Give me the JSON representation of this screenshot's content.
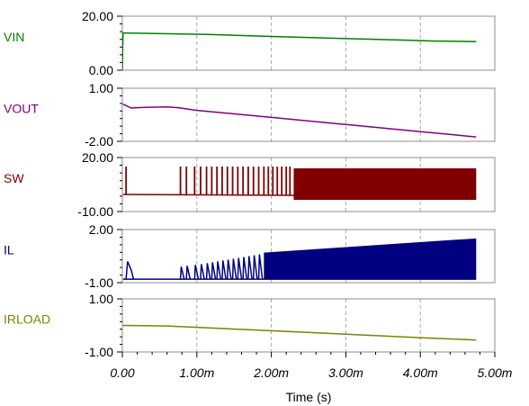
{
  "chart_data": {
    "type": "line",
    "xlabel": "Time (s)",
    "x_ticks": [
      "0.00",
      "1.00m",
      "2.00m",
      "3.00m",
      "4.00m",
      "5.00m"
    ],
    "xlim": [
      0,
      5
    ],
    "x_units": "ms",
    "grid": "vertical-dashed",
    "panels": [
      {
        "name": "VIN",
        "color": "#008000",
        "ylim": [
          0,
          20
        ],
        "y_ticks": [
          "20.00",
          "0.00"
        ],
        "series": [
          {
            "x": [
              0,
              0.005,
              0.01,
              0.02,
              0.8,
              1.2,
              2.0,
              2.9,
              3.7,
              4.2,
              4.75
            ],
            "y": [
              0,
              9,
              13.8,
              13.8,
              13.4,
              13.2,
              12.5,
              11.8,
              11.2,
              10.8,
              10.6
            ]
          }
        ]
      },
      {
        "name": "VOUT",
        "color": "#800080",
        "ylim": [
          -2,
          1
        ],
        "y_ticks": [
          "1.00",
          "-2.00"
        ],
        "series": [
          {
            "x": [
              0.01,
              0.05,
              0.12,
              0.3,
              0.6,
              0.75,
              1.0,
              2.0,
              3.0,
              4.0,
              4.75
            ],
            "y": [
              0.1,
              0.02,
              -0.12,
              -0.08,
              -0.06,
              -0.1,
              -0.25,
              -0.65,
              -1.05,
              -1.45,
              -1.75
            ]
          }
        ]
      },
      {
        "name": "SW",
        "color": "#800000",
        "ylim": [
          -10,
          20
        ],
        "y_ticks": [
          "20.00",
          "-10.00"
        ],
        "series": [
          {
            "x": [
              0.01,
              4.75
            ],
            "y": [
              -0.5,
              -1.5
            ]
          }
        ],
        "switching": {
          "envelope_x": [
            2.3,
            4.75
          ],
          "envelope_high": 14,
          "envelope_low": -3.5,
          "pulse_high": 15,
          "pulse_low": -0.8
        }
      },
      {
        "name": "IL",
        "color": "#000080",
        "ylim": [
          -1,
          2
        ],
        "y_ticks": [
          "2.00",
          "-1.00"
        ],
        "series": [
          {
            "x": [
              0.01,
              4.75
            ],
            "y": [
              -0.8,
              -0.8
            ]
          }
        ],
        "switching": {
          "envelope_x": [
            1.9,
            4.75
          ],
          "envelope_high_start": 0.7,
          "envelope_high_end": 1.5,
          "envelope_low": -0.8
        }
      },
      {
        "name": "IRLOAD",
        "color": "#808000",
        "ylim": [
          -1,
          1
        ],
        "y_ticks": [
          "1.00",
          "-1.00"
        ],
        "series": [
          {
            "x": [
              0.01,
              0.6,
              1.0,
              2.0,
              3.0,
              4.0,
              4.75
            ],
            "y": [
              0.0,
              -0.02,
              -0.07,
              -0.2,
              -0.33,
              -0.46,
              -0.55
            ]
          }
        ]
      }
    ]
  }
}
